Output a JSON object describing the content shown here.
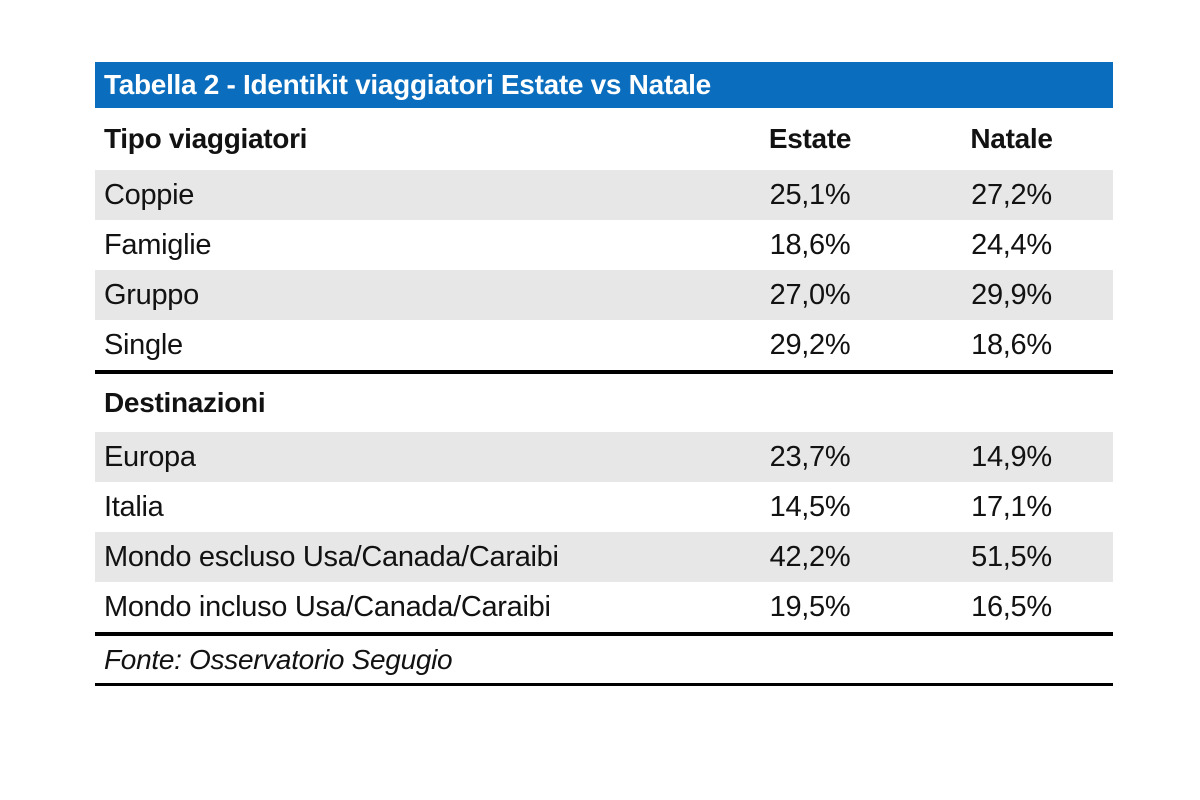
{
  "table": {
    "title": "Tabella 2 - Identikit viaggiatori Estate vs Natale",
    "header_row": {
      "label": "Tipo viaggiatori",
      "estate": "Estate",
      "natale": "Natale"
    },
    "sections": [
      {
        "name": null,
        "rows": [
          {
            "label": "Coppie",
            "estate": "25,1%",
            "natale": "27,2%"
          },
          {
            "label": "Famiglie",
            "estate": "18,6%",
            "natale": "24,4%"
          },
          {
            "label": "Gruppo",
            "estate": "27,0%",
            "natale": "29,9%"
          },
          {
            "label": "Single",
            "estate": "29,2%",
            "natale": "18,6%"
          }
        ]
      },
      {
        "name": "Destinazioni",
        "rows": [
          {
            "label": "Europa",
            "estate": "23,7%",
            "natale": "14,9%"
          },
          {
            "label": "Italia",
            "estate": "14,5%",
            "natale": "17,1%"
          },
          {
            "label": "Mondo escluso Usa/Canada/Caraibi",
            "estate": "42,2%",
            "natale": "51,5%"
          },
          {
            "label": "Mondo incluso Usa/Canada/Caraibi",
            "estate": "19,5%",
            "natale": "16,5%"
          }
        ]
      }
    ],
    "source": "Fonte: Osservatorio Segugio",
    "colors": {
      "title_bar_blue": "#0a6dbd",
      "title_text": "#ffffff",
      "zebra_row_gray": "#e7e7e7",
      "body_text": "#121212",
      "divider_black": "#000000"
    }
  },
  "chart_data": {
    "type": "table",
    "title": "Tabella 2 - Identikit viaggiatori Estate vs Natale",
    "columns": [
      "Tipo viaggiatori",
      "Estate",
      "Natale"
    ],
    "rows": [
      [
        "Coppie",
        "25,1%",
        "27,2%"
      ],
      [
        "Famiglie",
        "18,6%",
        "24,4%"
      ],
      [
        "Gruppo",
        "27,0%",
        "29,9%"
      ],
      [
        "Single",
        "29,2%",
        "18,6%"
      ],
      [
        "Destinazioni",
        "",
        ""
      ],
      [
        "Europa",
        "23,7%",
        "14,9%"
      ],
      [
        "Italia",
        "14,5%",
        "17,1%"
      ],
      [
        "Mondo escluso Usa/Canada/Caraibi",
        "42,2%",
        "51,5%"
      ],
      [
        "Mondo incluso Usa/Canada/Caraibi",
        "19,5%",
        "16,5%"
      ]
    ],
    "values_estate": [
      25.1,
      18.6,
      27.0,
      29.2,
      23.7,
      14.5,
      42.2,
      19.5
    ],
    "values_natale": [
      27.2,
      24.4,
      29.9,
      18.6,
      14.9,
      17.1,
      51.5,
      16.5
    ],
    "source": "Fonte: Osservatorio Segugio"
  }
}
